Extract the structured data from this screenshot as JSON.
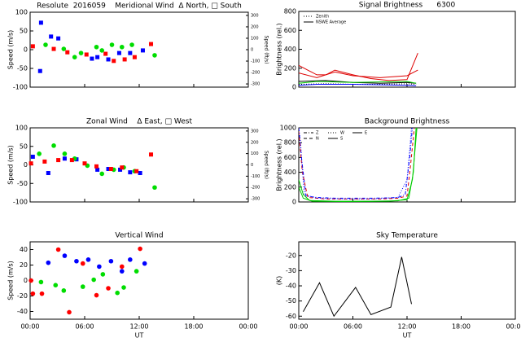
{
  "chart_data": [
    {
      "type": "scatter",
      "title": "Resolute  2016059    Meridional Wind  Δ North, □ South",
      "ylabel": "Speed (m/s)",
      "y2label": "Speed (ft/s)",
      "xlim": [
        0,
        24
      ],
      "xticks": [
        0,
        6,
        12,
        18,
        24
      ],
      "ylim": [
        -100,
        100
      ],
      "yticks": [
        -100,
        -50,
        0,
        50,
        100
      ],
      "y2lim": [
        -328,
        328
      ],
      "y2ticks": [
        -300,
        -200,
        -100,
        0,
        100,
        200,
        300
      ],
      "series": [
        {
          "color": "#0000ff",
          "marker": "square",
          "x": [
            1.2,
            1.1,
            2.3,
            3.1,
            6.8,
            7.4,
            8.6,
            9.8,
            11,
            12.4
          ],
          "values": [
            72,
            -57,
            35,
            30,
            -24,
            -20,
            -26,
            -9,
            -9,
            -2
          ]
        },
        {
          "color": "#00dd00",
          "marker": "circle",
          "x": [
            1.7,
            3.7,
            4.9,
            5.6,
            7.3,
            7.9,
            9,
            10.1,
            11.2,
            13.7
          ],
          "values": [
            13,
            2,
            -20,
            -9,
            7,
            -2,
            13,
            7,
            13,
            -15
          ]
        },
        {
          "color": "#ff0000",
          "marker": "square",
          "x": [
            0.3,
            2.6,
            4.1,
            6.2,
            8.3,
            9.2,
            10.4,
            11.5,
            13.3
          ],
          "values": [
            9,
            2,
            -7,
            -13,
            -11,
            -30,
            -26,
            -20,
            15
          ]
        }
      ]
    },
    {
      "type": "scatter",
      "title": "Zonal Wind    Δ East, □ West",
      "ylabel": "Speed (m/s)",
      "y2label": "Speed (ft/s)",
      "xlim": [
        0,
        24
      ],
      "xticks": [
        0,
        6,
        12,
        18,
        24
      ],
      "ylim": [
        -100,
        100
      ],
      "yticks": [
        -100,
        -50,
        0,
        50,
        100
      ],
      "y2lim": [
        -328,
        328
      ],
      "y2ticks": [
        -300,
        -200,
        -100,
        0,
        100,
        200,
        300
      ],
      "series": [
        {
          "color": "#0000ff",
          "marker": "square",
          "x": [
            0.3,
            2,
            3.8,
            5.1,
            7.4,
            8.6,
            9.9,
            11,
            12.1
          ],
          "values": [
            22,
            -22,
            17,
            15,
            -13,
            -11,
            -13,
            -20,
            -22
          ]
        },
        {
          "color": "#00dd00",
          "marker": "circle",
          "x": [
            1,
            2.6,
            3.8,
            4.9,
            6.3,
            7.9,
            9.2,
            10.3,
            11.5,
            13.7
          ],
          "values": [
            30,
            52,
            30,
            17,
            -2,
            -24,
            -13,
            -7,
            -17,
            -61
          ]
        },
        {
          "color": "#ff0000",
          "marker": "square",
          "x": [
            0.1,
            1.6,
            3.1,
            4.6,
            6,
            7.3,
            8.9,
            10.1,
            11.7,
            13.3
          ],
          "values": [
            4,
            9,
            13,
            13,
            4,
            -4,
            -11,
            -7,
            -17,
            28
          ]
        }
      ]
    },
    {
      "type": "scatter",
      "title": "Vertical Wind",
      "ylabel": "Speed (m/s)",
      "xlabel": "UT",
      "xlim": [
        0,
        24
      ],
      "xticks": [
        {
          "value": 0,
          "label": "00:00"
        },
        {
          "value": 6,
          "label": "06:00"
        },
        {
          "value": 12,
          "label": "12:00"
        },
        {
          "value": 18,
          "label": "18:00"
        },
        {
          "value": 24,
          "label": "00:00"
        }
      ],
      "ylim": [
        -50,
        50
      ],
      "yticks": [
        -40,
        -20,
        0,
        20,
        40
      ],
      "series": [
        {
          "color": "#0000ff",
          "marker": "circle",
          "x": [
            2,
            3.8,
            5.1,
            6.4,
            7.6,
            8.9,
            10.1,
            11,
            12.6
          ],
          "values": [
            23,
            32,
            25,
            27,
            18,
            25,
            12,
            27,
            22
          ]
        },
        {
          "color": "#00dd00",
          "marker": "circle",
          "x": [
            1.2,
            2.8,
            3.7,
            5.8,
            7,
            8,
            9.6,
            10.3,
            11.7
          ],
          "values": [
            -2,
            -6,
            -13,
            -8,
            1,
            8,
            -16,
            -9,
            12
          ]
        },
        {
          "color": "#ff0000",
          "marker": "circle",
          "x": [
            0.1,
            0.3,
            1.3,
            3.1,
            4.3,
            5.8,
            7.3,
            8.6,
            10.1,
            12.1
          ],
          "values": [
            0,
            -17,
            -17,
            40,
            -41,
            22,
            -19,
            -10,
            18,
            41
          ]
        }
      ]
    },
    {
      "type": "line",
      "title": "Signal Brightness      6300",
      "ylabel": "Brightness (rel.)",
      "legend": "upper left",
      "xlim": [
        0,
        24
      ],
      "xticks": [
        0,
        6,
        12,
        18,
        24
      ],
      "ylim": [
        0,
        800
      ],
      "yticks": [
        0,
        200,
        400,
        600,
        800
      ],
      "series": [
        {
          "name": "Zenith",
          "color": "#000000",
          "dash": "1,2",
          "x": [
            0,
            3,
            6,
            9,
            12,
            13
          ],
          "values": [
            30,
            35,
            30,
            30,
            35,
            30
          ]
        },
        {
          "name": "NSWE Average",
          "color": "#000000",
          "dash": "none",
          "x": [
            0,
            3,
            6,
            9,
            12,
            13
          ],
          "values": [
            60,
            70,
            50,
            40,
            50,
            40
          ]
        },
        {
          "color": "#dd0000",
          "dash": "none",
          "x": [
            0,
            2,
            3,
            4,
            6,
            8,
            10,
            12,
            13.2
          ],
          "values": [
            230,
            130,
            130,
            180,
            130,
            90,
            70,
            80,
            360
          ]
        },
        {
          "color": "#dd0000",
          "dash": "none",
          "x": [
            0,
            2,
            4,
            6,
            9,
            12,
            13.2
          ],
          "values": [
            150,
            100,
            160,
            120,
            100,
            120,
            180
          ]
        },
        {
          "color": "#0000ff",
          "dash": "none",
          "x": [
            0,
            2,
            6,
            12,
            13
          ],
          "values": [
            20,
            30,
            30,
            20,
            15
          ]
        },
        {
          "color": "#00cc00",
          "dash": "none",
          "x": [
            0,
            2,
            6,
            12,
            13
          ],
          "values": [
            40,
            60,
            50,
            60,
            40
          ]
        }
      ]
    },
    {
      "type": "line",
      "title": "Background Brightness",
      "ylabel": "Brightness (rel.)",
      "legend": "upper left",
      "xlim": [
        0,
        24
      ],
      "xticks": [
        0,
        6,
        12,
        18,
        24
      ],
      "ylim": [
        0,
        1000
      ],
      "yticks": [
        0,
        200,
        400,
        600,
        800,
        1000
      ],
      "series": [
        {
          "name": "Z",
          "color": "#0000ff",
          "dash": "4,2,1,2",
          "x": [
            0,
            0.3,
            0.8,
            2,
            4,
            6,
            8,
            10,
            11,
            11.8,
            12.3,
            12.6
          ],
          "values": [
            1000,
            600,
            80,
            60,
            50,
            50,
            50,
            55,
            60,
            100,
            600,
            1000
          ]
        },
        {
          "name": "N",
          "color": "#dd0000",
          "dash": "4,3",
          "x": [
            0,
            0.4,
            1,
            3,
            6,
            9,
            11,
            12,
            12.4,
            12.8
          ],
          "values": [
            950,
            400,
            60,
            40,
            40,
            40,
            50,
            80,
            500,
            1000
          ]
        },
        {
          "name": "W",
          "color": "#0000ff",
          "dash": "1,2",
          "x": [
            0,
            0.2,
            0.6,
            2,
            5,
            8,
            11,
            12,
            12.5
          ],
          "values": [
            1000,
            800,
            100,
            50,
            40,
            40,
            60,
            300,
            1000
          ]
        },
        {
          "name": "S",
          "color": "#00cc00",
          "dash": "none",
          "x": [
            0,
            0.5,
            1.2,
            4,
            8,
            11,
            12.2,
            12.7,
            13
          ],
          "values": [
            300,
            100,
            20,
            10,
            10,
            15,
            50,
            400,
            1000
          ]
        },
        {
          "name": "E",
          "color": "#00cc00",
          "dash": "none",
          "x": [
            0,
            0.5,
            1.5,
            5,
            10,
            12,
            12.6,
            13.1
          ],
          "values": [
            200,
            50,
            10,
            5,
            10,
            30,
            300,
            1000
          ]
        }
      ]
    },
    {
      "type": "line",
      "title": "Sky Temperature",
      "ylabel": "(K)",
      "xlabel": "UT",
      "xlim": [
        0,
        24
      ],
      "xticks": [
        {
          "value": 0,
          "label": "00:00"
        },
        {
          "value": 6,
          "label": "06:00"
        },
        {
          "value": 12,
          "label": "12:00"
        },
        {
          "value": 18,
          "label": "18:00"
        },
        {
          "value": 24,
          "label": "00:00"
        }
      ],
      "ylim": [
        -62,
        -11
      ],
      "yticks": [
        -60,
        -50,
        -40,
        -30,
        -20
      ],
      "series": [
        {
          "color": "#000000",
          "dash": "none",
          "x": [
            0.5,
            2.3,
            3.9,
            6.3,
            8,
            10.2,
            11.4,
            12.5
          ],
          "values": [
            -57,
            -38,
            -60,
            -41,
            -59,
            -54,
            -21,
            -52
          ]
        }
      ]
    }
  ]
}
